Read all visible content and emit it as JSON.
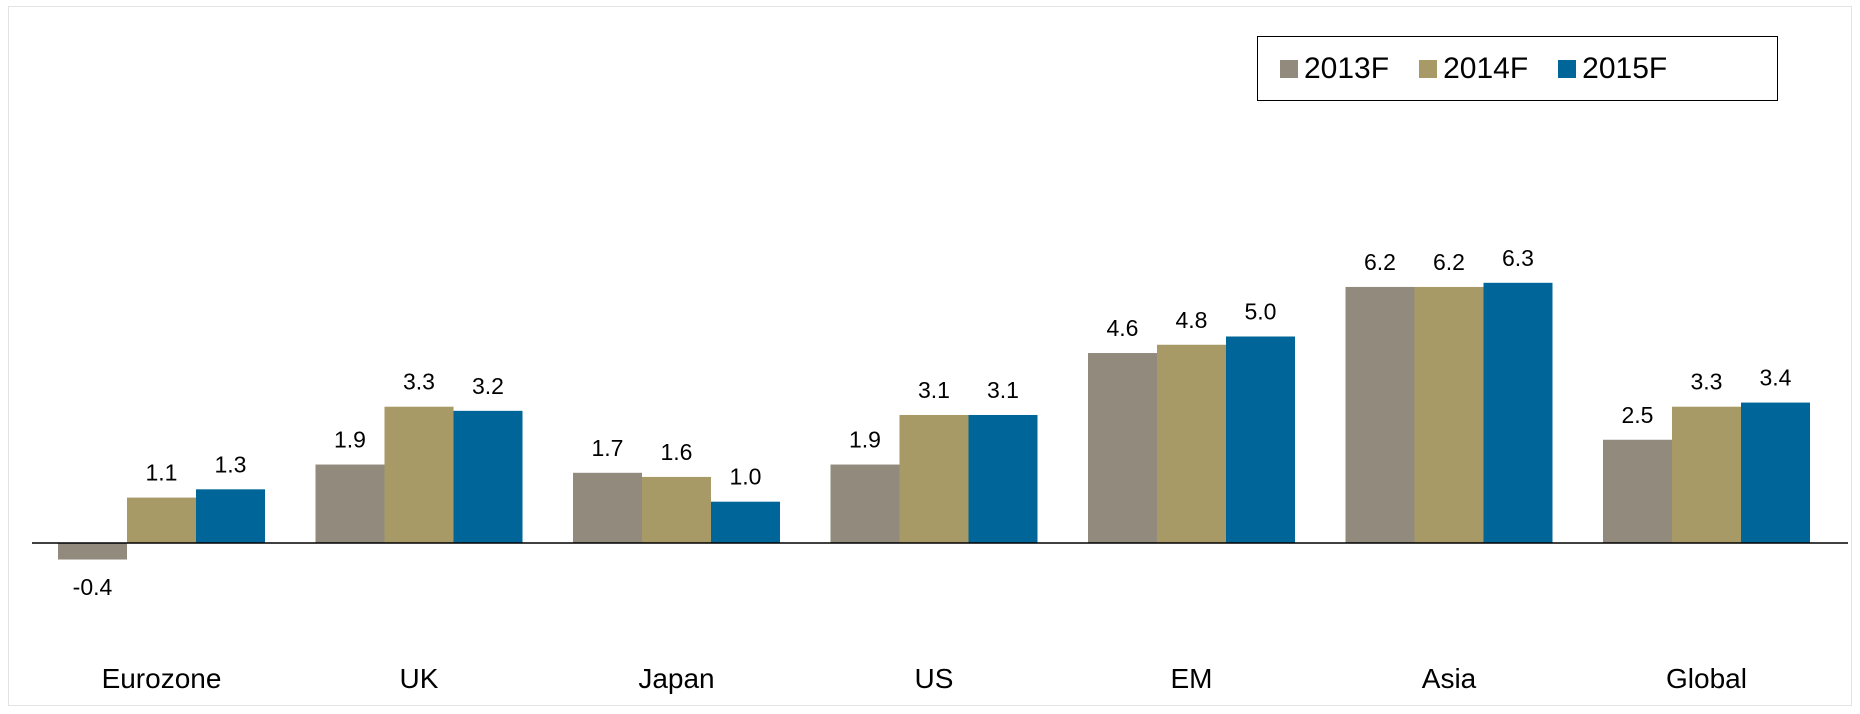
{
  "chart_data": {
    "type": "bar",
    "categories": [
      "Eurozone",
      "UK",
      "Japan",
      "US",
      "EM",
      "Asia",
      "Global"
    ],
    "series": [
      {
        "name": "2013F",
        "color": "#928a7d",
        "values": [
          -0.4,
          1.9,
          1.7,
          1.9,
          4.6,
          6.2,
          2.5
        ]
      },
      {
        "name": "2014F",
        "color": "#a89a66",
        "values": [
          1.1,
          3.3,
          1.6,
          3.1,
          4.8,
          6.2,
          3.3
        ]
      },
      {
        "name": "2015F",
        "color": "#006699",
        "values": [
          1.3,
          3.2,
          1.0,
          3.1,
          5.0,
          6.3,
          3.4
        ]
      }
    ],
    "data_labels": [
      [
        "-0.4",
        "1.9",
        "1.7",
        "1.9",
        "4.6",
        "6.2",
        "2.5"
      ],
      [
        "1.1",
        "3.3",
        "1.6",
        "3.1",
        "4.8",
        "6.2",
        "3.3"
      ],
      [
        "1.3",
        "3.2",
        "1.0",
        "3.1",
        "5.0",
        "6.3",
        "3.4"
      ]
    ],
    "title": "",
    "xlabel": "",
    "ylabel": "",
    "ylim": [
      -2.0,
      10.0
    ],
    "grid": false,
    "legend_position": "top-right"
  }
}
